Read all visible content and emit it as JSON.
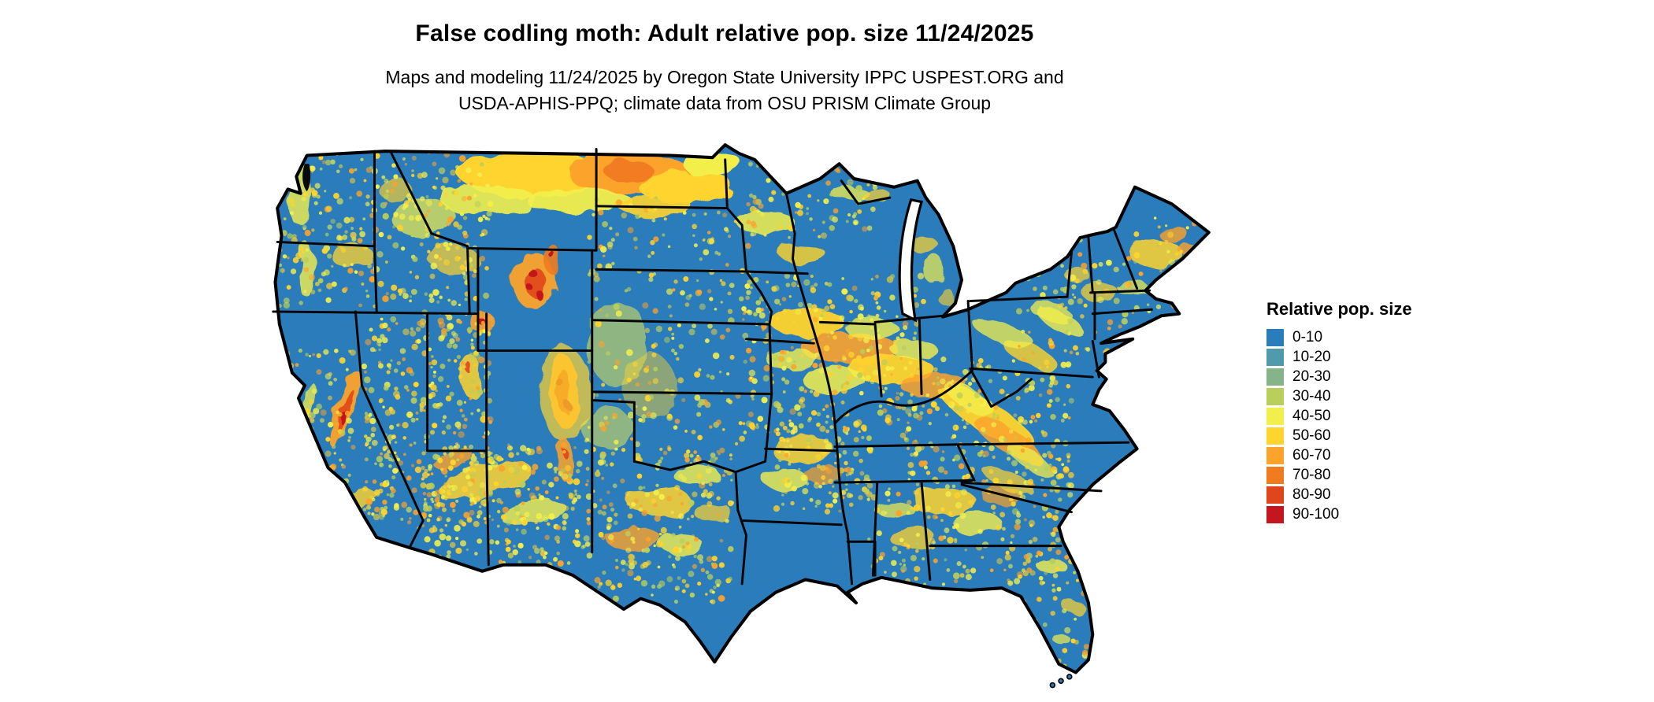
{
  "header": {
    "title": "False codling moth: Adult relative pop. size 11/24/2025",
    "subtitle_line1": "Maps and modeling 11/24/2025 by Oregon State University IPPC USPEST.ORG and",
    "subtitle_line2": "USDA-APHIS-PPQ; climate data from OSU PRISM Climate Group"
  },
  "legend": {
    "title": "Relative pop. size",
    "entries": [
      {
        "label": "0-10",
        "color": "#2b7cba"
      },
      {
        "label": "10-20",
        "color": "#4f9bab"
      },
      {
        "label": "20-30",
        "color": "#85b489"
      },
      {
        "label": "30-40",
        "color": "#b9ce5b"
      },
      {
        "label": "40-50",
        "color": "#f2ef4c"
      },
      {
        "label": "50-60",
        "color": "#ffd42d"
      },
      {
        "label": "60-70",
        "color": "#fba32b"
      },
      {
        "label": "70-80",
        "color": "#f17c20"
      },
      {
        "label": "80-90",
        "color": "#e0461b"
      },
      {
        "label": "90-100",
        "color": "#c3161d"
      }
    ]
  },
  "map": {
    "region": "Contiguous United States",
    "type": "raster relative population size map",
    "base_class": "0-10",
    "boundary_color": "#000000",
    "background_color": "#ffffff"
  }
}
